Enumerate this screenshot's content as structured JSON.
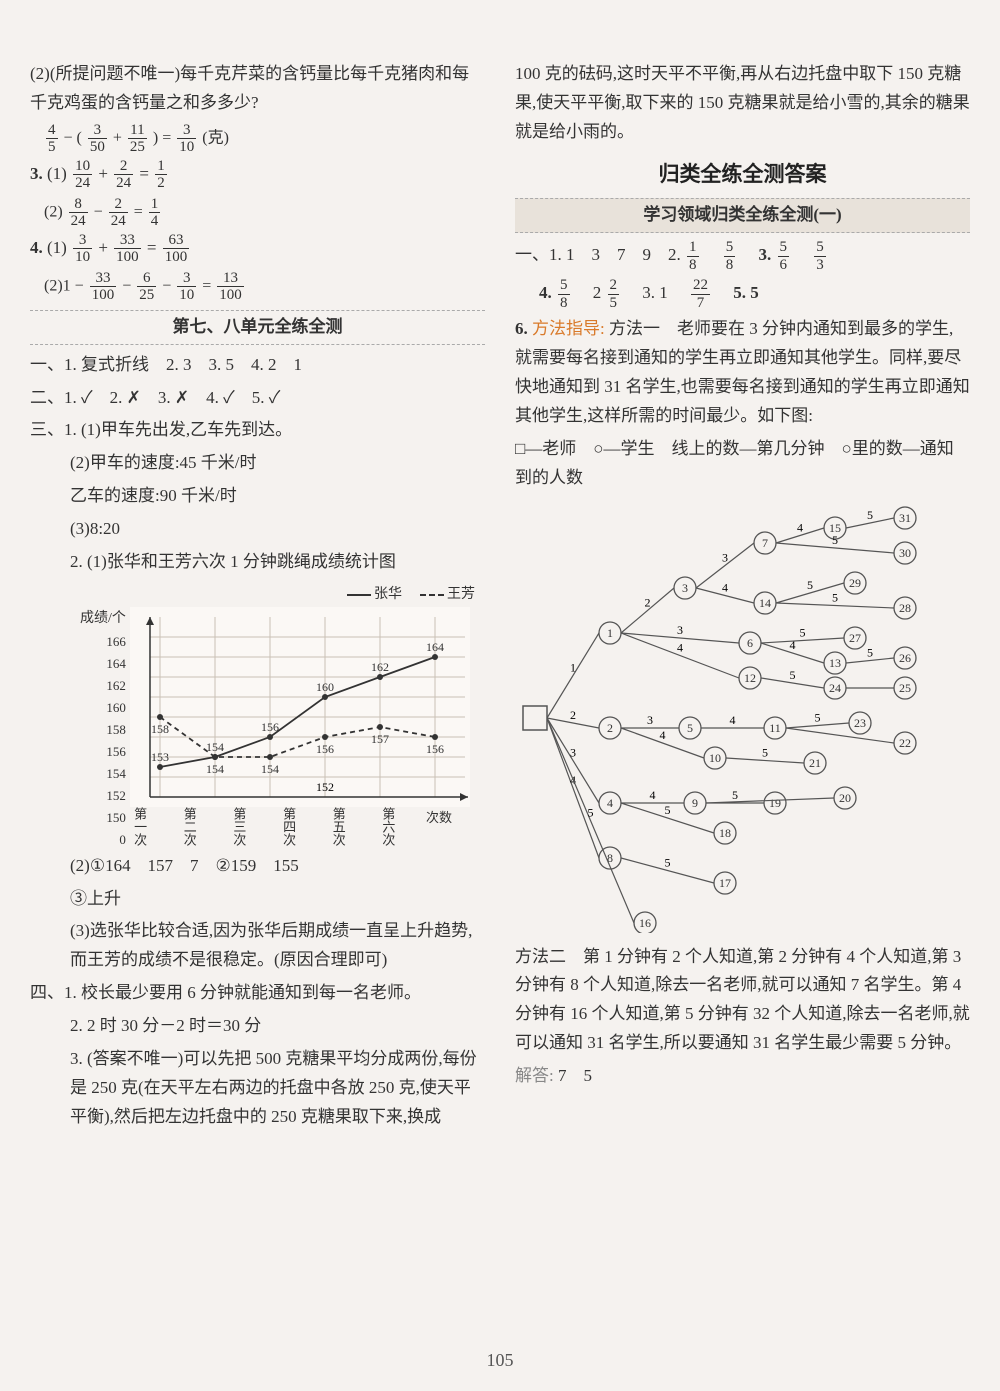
{
  "page_number": "105",
  "left": {
    "intro": "(2)(所提问题不唯一)每千克芹菜的含钙量比每千克猪肉和每千克鸡蛋的含钙量之和多多少?",
    "eq1_lhs_a": {
      "n": "4",
      "d": "5"
    },
    "eq1_lhs_b": {
      "n": "3",
      "d": "50"
    },
    "eq1_lhs_c": {
      "n": "11",
      "d": "25"
    },
    "eq1_rhs": {
      "n": "3",
      "d": "10"
    },
    "eq1_unit": "(克)",
    "l3": "3.",
    "eq3_1_a": {
      "n": "10",
      "d": "24"
    },
    "eq3_1_b": {
      "n": "2",
      "d": "24"
    },
    "eq3_1_r": {
      "n": "1",
      "d": "2"
    },
    "eq3_2_a": {
      "n": "8",
      "d": "24"
    },
    "eq3_2_b": {
      "n": "2",
      "d": "24"
    },
    "eq3_2_r": {
      "n": "1",
      "d": "4"
    },
    "l4": "4.",
    "eq4_1_a": {
      "n": "3",
      "d": "10"
    },
    "eq4_1_b": {
      "n": "33",
      "d": "100"
    },
    "eq4_1_r": {
      "n": "63",
      "d": "100"
    },
    "eq4_2_a": {
      "n": "33",
      "d": "100"
    },
    "eq4_2_b": {
      "n": "6",
      "d": "25"
    },
    "eq4_2_c": {
      "n": "3",
      "d": "10"
    },
    "eq4_2_r": {
      "n": "13",
      "d": "100"
    },
    "section78": "第七、八单元全练全测",
    "line_a": "一、1. 复式折线　2. 3　3. 5　4. 2　1",
    "line_b": "二、1. ✓　2. ✗　3. ✗　4. ✓　5. ✓",
    "line_c": "三、1. (1)甲车先出发,乙车先到达。",
    "line_c2": "(2)甲车的速度:45 千米/时",
    "line_c3": "乙车的速度:90 千米/时",
    "line_c4": "(3)8:20",
    "line_d": "2. (1)张华和王芳六次 1 分钟跳绳成绩统计图",
    "chart": {
      "ylabel": "成绩/个",
      "xlabel": "次数",
      "yticks": [
        "166",
        "164",
        "162",
        "160",
        "158",
        "156",
        "154",
        "152",
        "150",
        "0"
      ],
      "xticks": [
        "第一次",
        "第二次",
        "第三次",
        "第四次",
        "第五次",
        "第六次"
      ],
      "legend_zh": "张华",
      "legend_wf": "王芳",
      "zhang": [
        153,
        154,
        156,
        160,
        162,
        164
      ],
      "wang": [
        158,
        154,
        154,
        156,
        157,
        156
      ],
      "labels_zhang": [
        "153",
        "154",
        "156",
        "160",
        "162",
        "164"
      ],
      "labels_wang": [
        "158",
        "154",
        "154",
        "156",
        "157",
        "156"
      ],
      "extra_labels": [
        "152"
      ],
      "colors": {
        "grid": "#c9c0b5",
        "zhang": "#333",
        "wang": "#333",
        "bg": "#fbf8f5"
      }
    },
    "line_e": "(2)①164　157　7　②159　155",
    "line_f": "③上升",
    "line_g": "(3)选张华比较合适,因为张华后期成绩一直呈上升趋势,而王芳的成绩不是很稳定。(原因合理即可)",
    "line_h": "四、1. 校长最少要用 6 分钟就能通知到每一名老师。",
    "line_i": "2. 2 时 30 分－2 时＝30 分",
    "line_j": "3. (答案不唯一)可以先把 500 克糖果平均分成两份,每份是 250 克(在天平左右两边的托盘中各放 250 克,使天平平衡),然后把左边托盘中的 250 克糖果取下来,换成"
  },
  "right": {
    "top": "100 克的砝码,这时天平不平衡,再从右边托盘中取下 150 克糖果,使天平平衡,取下来的 150 克糖果就是给小雪的,其余的糖果就是给小雨的。",
    "big_title": "归类全练全测答案",
    "sub_title": "学习领域归类全练全测(一)",
    "row1_prefix": "一、1. 1　3　7　9　2.",
    "f2a": {
      "n": "1",
      "d": "8"
    },
    "f2b": {
      "n": "5",
      "d": "8"
    },
    "row1_mid": "3.",
    "f3a": {
      "n": "5",
      "d": "6"
    },
    "f3b": {
      "n": "5",
      "d": "3"
    },
    "row2_prefix": "4.",
    "f4a": {
      "n": "5",
      "d": "8"
    },
    "row2_b": "2",
    "f4b": {
      "n": "2",
      "d": "5"
    },
    "row2_c": "3. 1",
    "f4c": {
      "n": "22",
      "d": "7"
    },
    "row2_d": "5. 5",
    "l6_label": "6.",
    "l6_hint": "方法指导:",
    "l6_text": "方法一　老师要在 3 分钟内通知到最多的学生,就需要每名接到通知的学生再立即通知其他学生。同样,要尽快地通知到 31 名学生,也需要每名接到通知的学生再立即通知其他学生,这样所需的时间最少。如下图:",
    "legend_key": "□—老师　○—学生　线上的数—第几分钟　○里的数—通知到的人数",
    "tree": {
      "root_shape": "square",
      "node_shape": "circle",
      "node_ids": [
        "1",
        "2",
        "3",
        "4",
        "5",
        "6",
        "7",
        "8",
        "9",
        "10",
        "11",
        "12",
        "13",
        "14",
        "15",
        "16",
        "17",
        "18",
        "19",
        "20",
        "21",
        "22",
        "23",
        "24",
        "25",
        "26",
        "27",
        "28",
        "29",
        "30",
        "31"
      ],
      "colors": {
        "stroke": "#555",
        "text": "#333",
        "bg": "#f5f2ef"
      },
      "edge_minutes": [
        "1",
        "2",
        "3",
        "4",
        "5"
      ]
    },
    "method2": "方法二　第 1 分钟有 2 个人知道,第 2 分钟有 4 个人知道,第 3 分钟有 8 个人知道,除去一名老师,就可以通知 7 名学生。第 4 分钟有 16 个人知道,第 5 分钟有 32 个人知道,除去一名老师,就可以通知 31 名学生,所以要通知 31 名学生最少需要 5 分钟。",
    "answer_label": "解答:",
    "answer_vals": "7　5"
  }
}
